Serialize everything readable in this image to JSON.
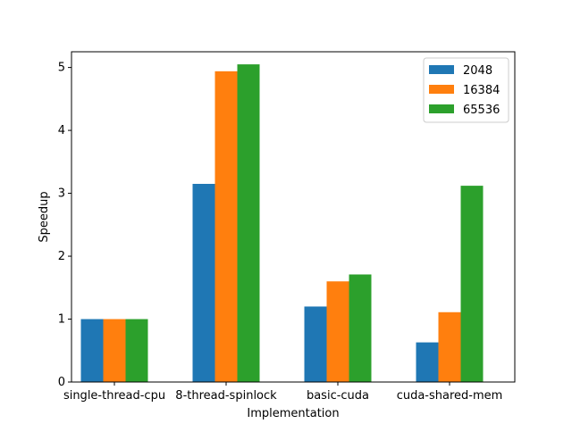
{
  "chart_data": {
    "type": "bar",
    "title": "",
    "xlabel": "Implementation",
    "ylabel": "Speedup",
    "categories": [
      "single-thread-cpu",
      "8-thread-spinlock",
      "basic-cuda",
      "cuda-shared-mem"
    ],
    "series": [
      {
        "name": "2048",
        "color": "#1f77b4",
        "values": [
          1.0,
          3.15,
          1.2,
          0.63
        ]
      },
      {
        "name": "16384",
        "color": "#ff7f0e",
        "values": [
          1.0,
          4.94,
          1.6,
          1.11
        ]
      },
      {
        "name": "65536",
        "color": "#2ca02c",
        "values": [
          1.0,
          5.05,
          1.71,
          3.12
        ]
      }
    ],
    "ylim": [
      0,
      5.25
    ],
    "yticks": [
      0,
      1,
      2,
      3,
      4,
      5
    ],
    "legend_position": "top-right",
    "grid": false
  }
}
